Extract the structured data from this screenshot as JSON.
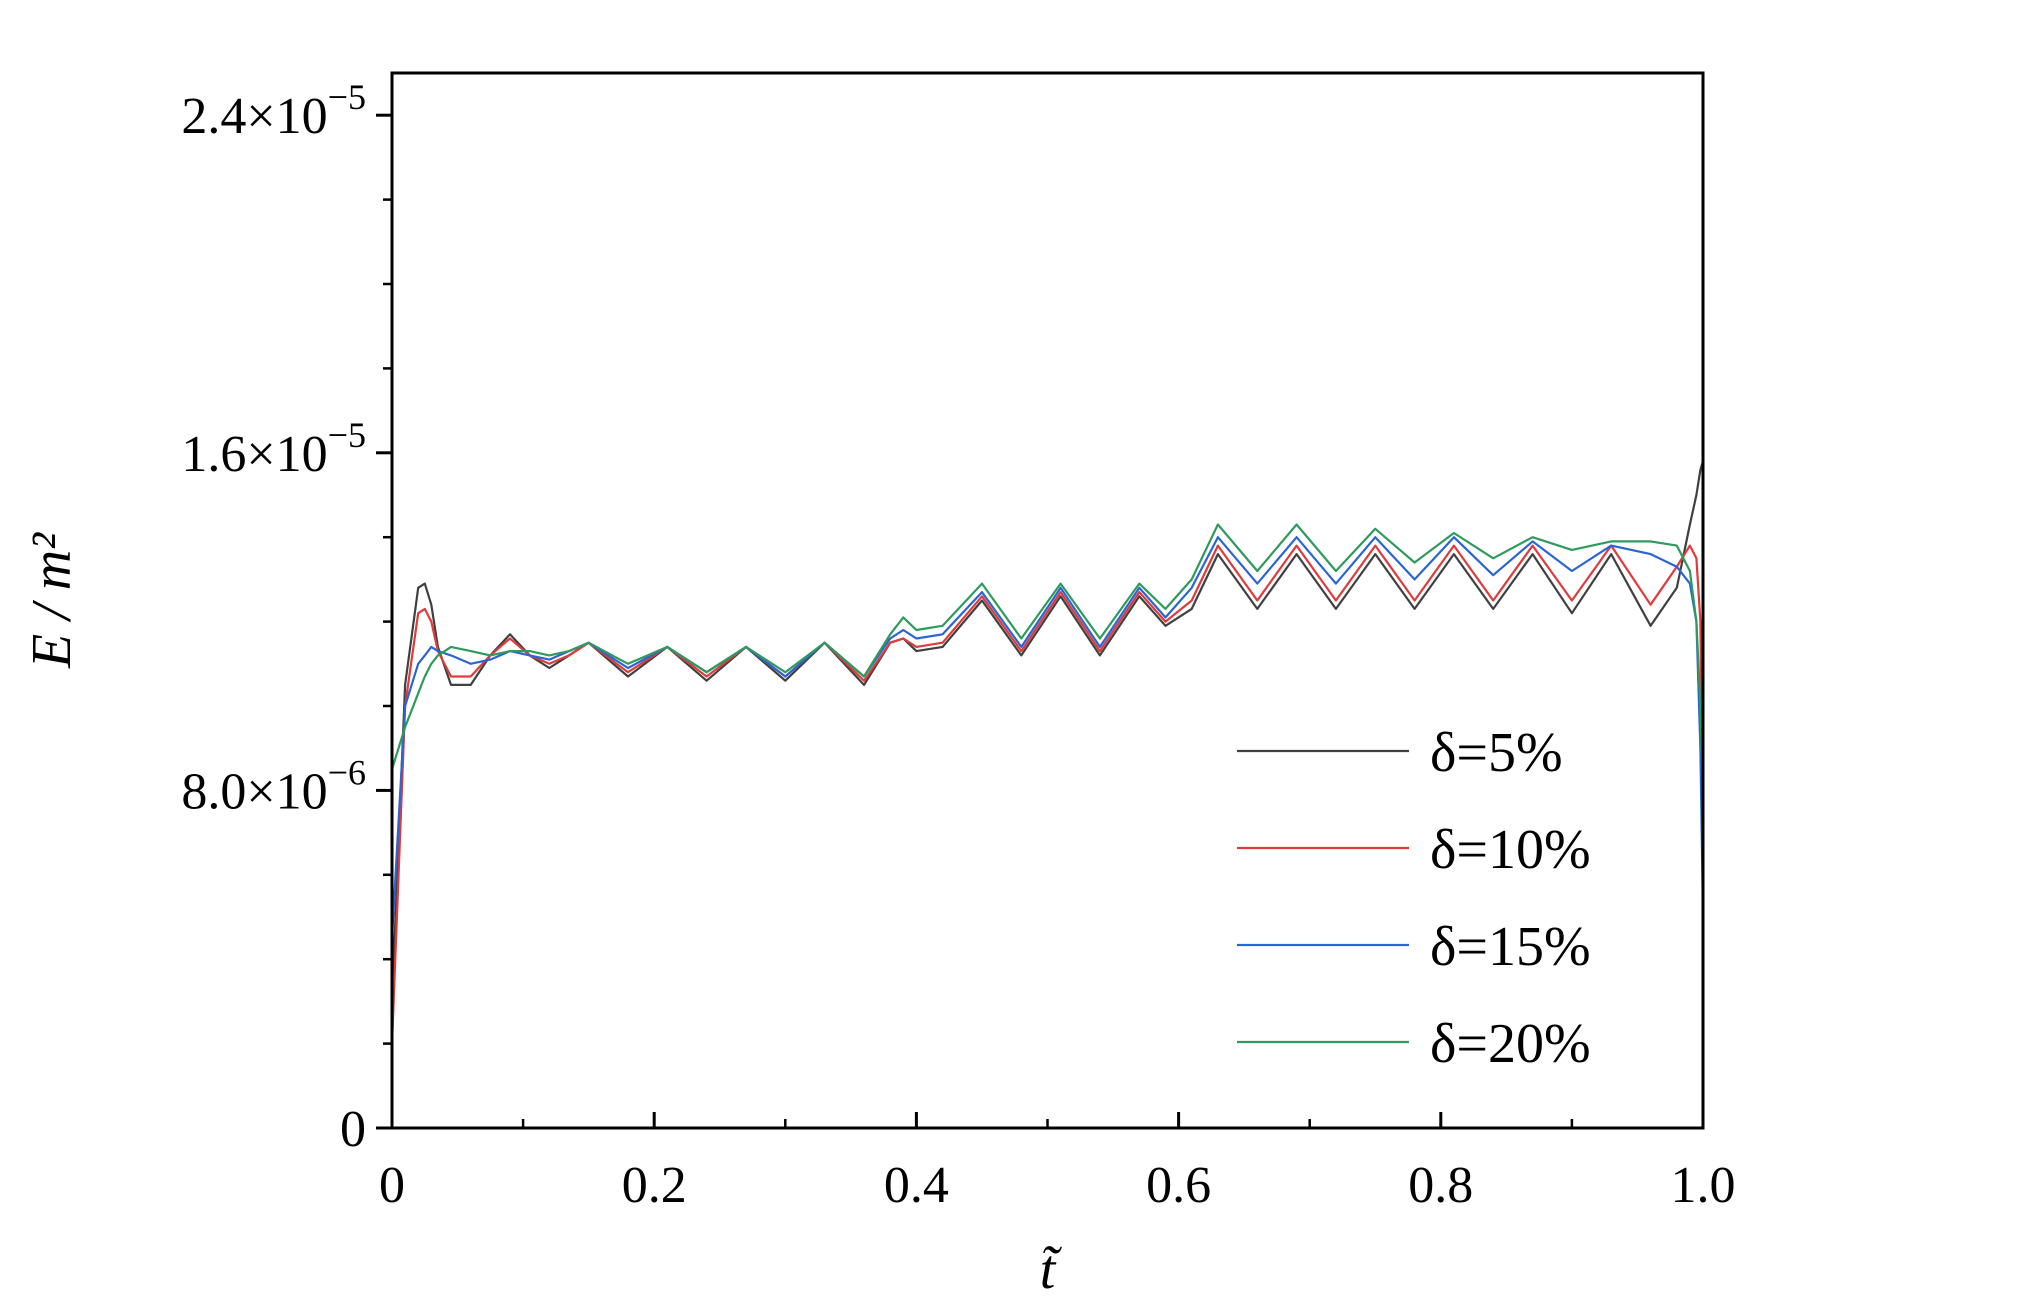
{
  "chart_data": {
    "type": "line",
    "title": "",
    "xlabel": "t̃",
    "ylabel": "E / m²",
    "xlim": [
      0,
      1.0
    ],
    "ylim": [
      0,
      2.5e-05
    ],
    "grid": false,
    "legend_position": "bottom-right",
    "x_ticks": [
      {
        "value": 0,
        "label": "0"
      },
      {
        "value": 0.2,
        "label": "0.2"
      },
      {
        "value": 0.4,
        "label": "0.4"
      },
      {
        "value": 0.6,
        "label": "0.6"
      },
      {
        "value": 0.8,
        "label": "0.8"
      },
      {
        "value": 1.0,
        "label": "1.0"
      }
    ],
    "y_ticks": [
      {
        "value": 0,
        "mantissa": "0",
        "exponent": ""
      },
      {
        "value": 8e-06,
        "mantissa": "8.0×10",
        "exponent": "−6"
      },
      {
        "value": 1.6e-05,
        "mantissa": "1.6×10",
        "exponent": "−5"
      },
      {
        "value": 2.4e-05,
        "mantissa": "2.4×10",
        "exponent": "−5"
      }
    ],
    "y_minor_ticks": [
      2e-06,
      4e-06,
      6e-06,
      1e-05,
      1.2e-05,
      1.4e-05,
      1.8e-05,
      2e-05,
      2.2e-05
    ],
    "x_minor_ticks": [
      0.1,
      0.3,
      0.5,
      0.7,
      0.9
    ],
    "series": [
      {
        "name": "δ=5%",
        "color": "#404040",
        "x": [
          0,
          0.01,
          0.02,
          0.025,
          0.03,
          0.035,
          0.045,
          0.06,
          0.075,
          0.09,
          0.105,
          0.12,
          0.135,
          0.15,
          0.18,
          0.21,
          0.24,
          0.27,
          0.3,
          0.33,
          0.36,
          0.38,
          0.39,
          0.4,
          0.42,
          0.45,
          0.48,
          0.51,
          0.54,
          0.57,
          0.59,
          0.61,
          0.63,
          0.66,
          0.69,
          0.72,
          0.75,
          0.78,
          0.81,
          0.84,
          0.87,
          0.9,
          0.93,
          0.96,
          0.98,
          0.99,
          0.995,
          0.998,
          1.0
        ],
        "y": [
          3e-06,
          1.05e-05,
          1.28e-05,
          1.29e-05,
          1.24e-05,
          1.14e-05,
          1.05e-05,
          1.05e-05,
          1.12e-05,
          1.17e-05,
          1.12e-05,
          1.09e-05,
          1.12e-05,
          1.15e-05,
          1.07e-05,
          1.14e-05,
          1.06e-05,
          1.14e-05,
          1.06e-05,
          1.15e-05,
          1.05e-05,
          1.15e-05,
          1.16e-05,
          1.13e-05,
          1.14e-05,
          1.25e-05,
          1.12e-05,
          1.26e-05,
          1.12e-05,
          1.26e-05,
          1.19e-05,
          1.23e-05,
          1.36e-05,
          1.23e-05,
          1.36e-05,
          1.23e-05,
          1.36e-05,
          1.23e-05,
          1.36e-05,
          1.23e-05,
          1.36e-05,
          1.22e-05,
          1.36e-05,
          1.19e-05,
          1.28e-05,
          1.43e-05,
          1.5e-05,
          1.56e-05,
          1.58e-05
        ]
      },
      {
        "name": "δ=10%",
        "color": "#e03a3a",
        "x": [
          0,
          0.01,
          0.02,
          0.025,
          0.03,
          0.035,
          0.045,
          0.06,
          0.075,
          0.09,
          0.105,
          0.12,
          0.135,
          0.15,
          0.18,
          0.21,
          0.24,
          0.27,
          0.3,
          0.33,
          0.36,
          0.38,
          0.39,
          0.4,
          0.42,
          0.45,
          0.48,
          0.51,
          0.54,
          0.57,
          0.59,
          0.61,
          0.63,
          0.66,
          0.69,
          0.72,
          0.75,
          0.78,
          0.81,
          0.84,
          0.87,
          0.9,
          0.93,
          0.96,
          0.98,
          0.99,
          0.995,
          0.998,
          1.0
        ],
        "y": [
          2e-06,
          1e-05,
          1.22e-05,
          1.23e-05,
          1.2e-05,
          1.13e-05,
          1.07e-05,
          1.07e-05,
          1.12e-05,
          1.16e-05,
          1.12e-05,
          1.1e-05,
          1.12e-05,
          1.15e-05,
          1.08e-05,
          1.14e-05,
          1.07e-05,
          1.14e-05,
          1.07e-05,
          1.15e-05,
          1.06e-05,
          1.15e-05,
          1.16e-05,
          1.14e-05,
          1.15e-05,
          1.26e-05,
          1.13e-05,
          1.27e-05,
          1.13e-05,
          1.27e-05,
          1.2e-05,
          1.25e-05,
          1.38e-05,
          1.25e-05,
          1.38e-05,
          1.25e-05,
          1.38e-05,
          1.25e-05,
          1.38e-05,
          1.25e-05,
          1.38e-05,
          1.25e-05,
          1.38e-05,
          1.24e-05,
          1.33e-05,
          1.38e-05,
          1.35e-05,
          1.2e-05,
          7e-06
        ]
      },
      {
        "name": "δ=15%",
        "color": "#2a64d6",
        "x": [
          0,
          0.01,
          0.02,
          0.025,
          0.03,
          0.035,
          0.045,
          0.06,
          0.075,
          0.09,
          0.105,
          0.12,
          0.135,
          0.15,
          0.18,
          0.21,
          0.24,
          0.27,
          0.3,
          0.33,
          0.36,
          0.38,
          0.39,
          0.4,
          0.42,
          0.45,
          0.48,
          0.51,
          0.54,
          0.57,
          0.59,
          0.61,
          0.63,
          0.66,
          0.69,
          0.72,
          0.75,
          0.78,
          0.81,
          0.84,
          0.87,
          0.9,
          0.93,
          0.96,
          0.98,
          0.99,
          0.995,
          0.998,
          1.0
        ],
        "y": [
          4.5e-06,
          1e-05,
          1.1e-05,
          1.12e-05,
          1.14e-05,
          1.13e-05,
          1.12e-05,
          1.1e-05,
          1.11e-05,
          1.13e-05,
          1.12e-05,
          1.11e-05,
          1.13e-05,
          1.15e-05,
          1.09e-05,
          1.14e-05,
          1.08e-05,
          1.14e-05,
          1.07e-05,
          1.15e-05,
          1.07e-05,
          1.16e-05,
          1.18e-05,
          1.16e-05,
          1.17e-05,
          1.27e-05,
          1.14e-05,
          1.28e-05,
          1.14e-05,
          1.28e-05,
          1.21e-05,
          1.28e-05,
          1.4e-05,
          1.29e-05,
          1.4e-05,
          1.29e-05,
          1.4e-05,
          1.3e-05,
          1.4e-05,
          1.31e-05,
          1.39e-05,
          1.32e-05,
          1.38e-05,
          1.36e-05,
          1.33e-05,
          1.29e-05,
          1.2e-05,
          9e-06,
          5e-06
        ]
      },
      {
        "name": "δ=20%",
        "color": "#2e9a5c",
        "x": [
          0,
          0.01,
          0.02,
          0.025,
          0.03,
          0.035,
          0.045,
          0.06,
          0.075,
          0.09,
          0.105,
          0.12,
          0.135,
          0.15,
          0.18,
          0.21,
          0.24,
          0.27,
          0.3,
          0.33,
          0.36,
          0.38,
          0.39,
          0.4,
          0.42,
          0.45,
          0.48,
          0.51,
          0.54,
          0.57,
          0.59,
          0.61,
          0.63,
          0.66,
          0.69,
          0.72,
          0.75,
          0.78,
          0.81,
          0.84,
          0.87,
          0.9,
          0.93,
          0.96,
          0.98,
          0.99,
          0.995,
          0.998,
          1.0
        ],
        "y": [
          8.5e-06,
          9.5e-06,
          1.03e-05,
          1.07e-05,
          1.1e-05,
          1.12e-05,
          1.14e-05,
          1.13e-05,
          1.12e-05,
          1.13e-05,
          1.13e-05,
          1.12e-05,
          1.13e-05,
          1.15e-05,
          1.1e-05,
          1.14e-05,
          1.08e-05,
          1.14e-05,
          1.08e-05,
          1.15e-05,
          1.07e-05,
          1.17e-05,
          1.21e-05,
          1.18e-05,
          1.19e-05,
          1.29e-05,
          1.16e-05,
          1.29e-05,
          1.16e-05,
          1.29e-05,
          1.23e-05,
          1.3e-05,
          1.43e-05,
          1.32e-05,
          1.43e-05,
          1.32e-05,
          1.42e-05,
          1.34e-05,
          1.41e-05,
          1.35e-05,
          1.4e-05,
          1.37e-05,
          1.39e-05,
          1.39e-05,
          1.38e-05,
          1.32e-05,
          1.2e-05,
          1e-05,
          8e-06
        ]
      }
    ]
  }
}
